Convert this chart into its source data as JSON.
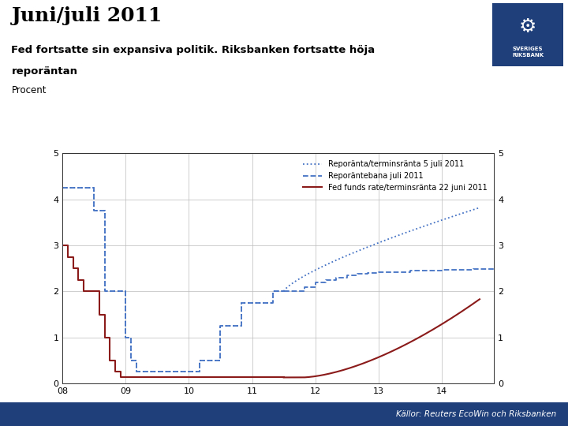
{
  "title": "Juni/juli 2011",
  "subtitle1": "Fed fortsatte sin expansiva politik. Riksbanken fortsatte höja",
  "subtitle2": "reporäntan",
  "ylabel_label": "Procent",
  "footer": "Källor: Reuters EcoWin och Riksbanken",
  "xlim": [
    2008.0,
    2014.83
  ],
  "ylim": [
    0,
    5
  ],
  "yticks": [
    0,
    1,
    2,
    3,
    4,
    5
  ],
  "xticks": [
    2008,
    2009,
    2010,
    2011,
    2012,
    2013,
    2014
  ],
  "xticklabels": [
    "08",
    "09",
    "10",
    "11",
    "12",
    "13",
    "14"
  ],
  "legend_labels": [
    "Reporänta/terminsränta 5 juli 2011",
    "Reporäntebana juli 2011",
    "Fed funds rate/terminsränta 22 juni 2011"
  ],
  "blue": "#4472C4",
  "red": "#8B1A1A",
  "background_color": "#FFFFFF",
  "grid_color": "#BBBBBB",
  "title_color": "#000000",
  "riksbank_blue": "#1F3F7A",
  "footer_bar_color": "#1F3F7A"
}
